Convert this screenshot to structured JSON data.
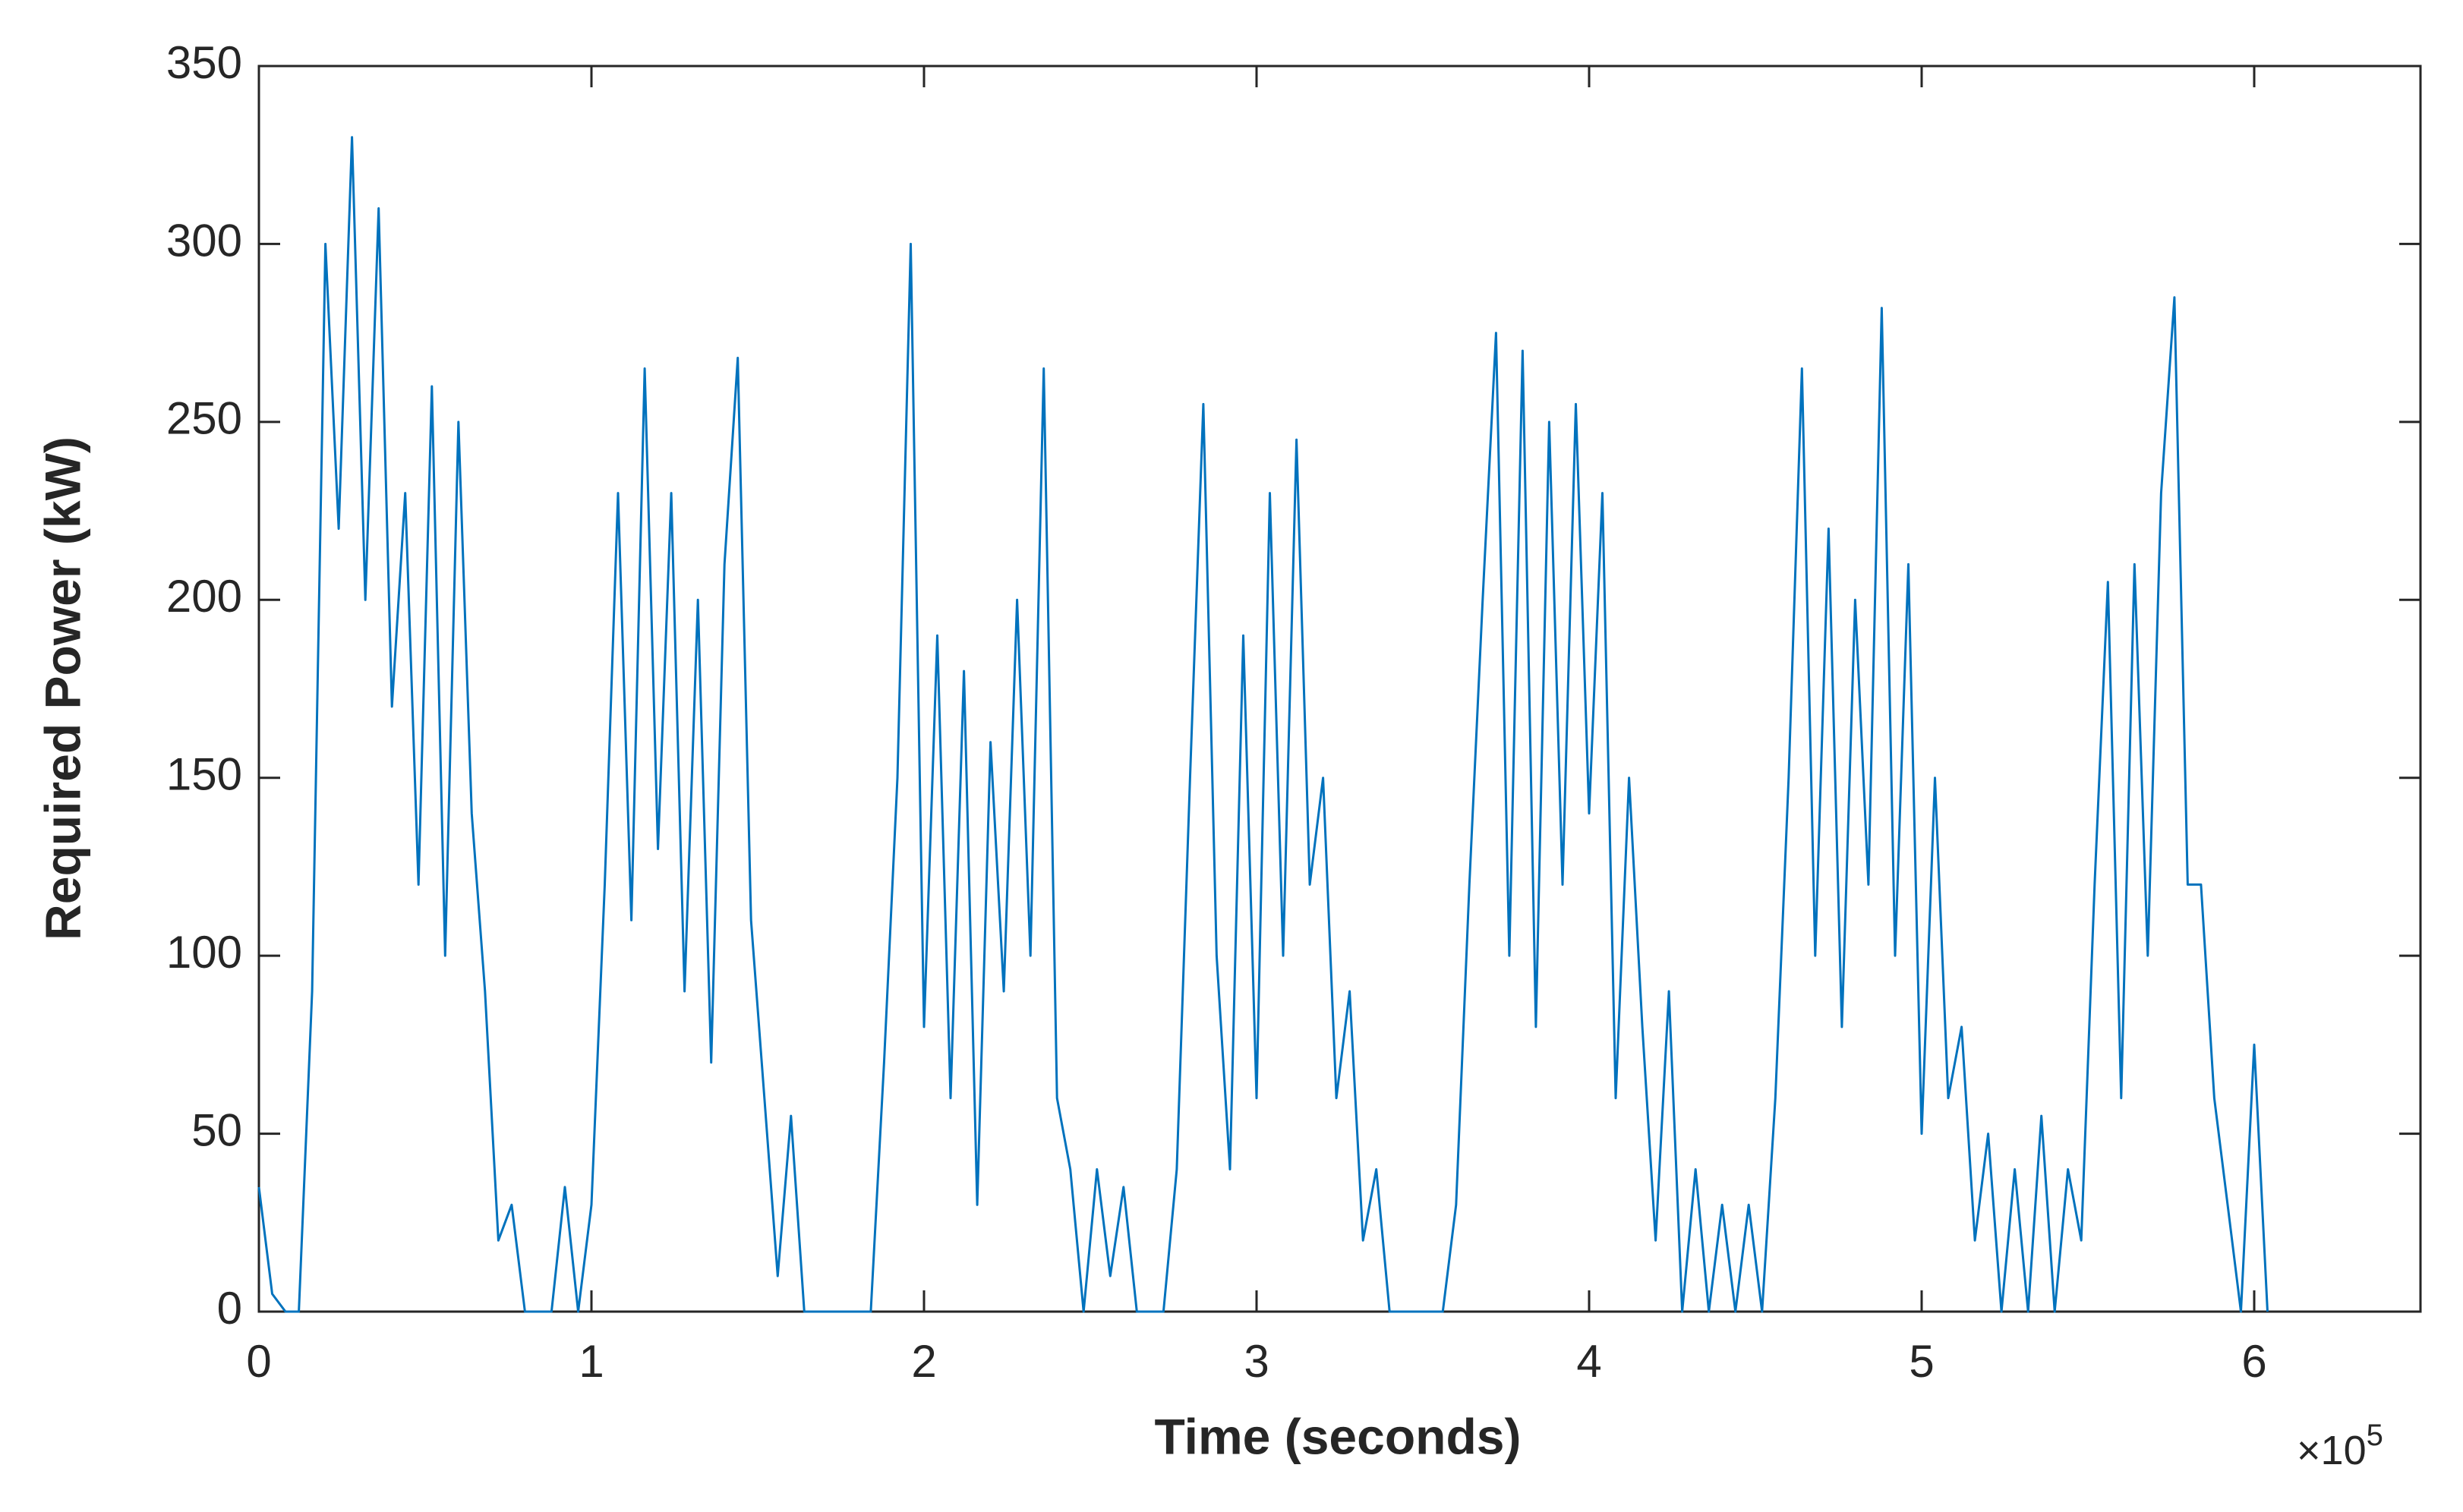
{
  "chart_data": {
    "type": "line",
    "x_label": "Time (seconds)",
    "y_label": "Required Power (kW)",
    "x_multiplier": {
      "base": "×10",
      "exponent": "5"
    },
    "color": "#0072bd",
    "xlim": [
      0,
      6.5
    ],
    "xticks": [
      0,
      1,
      2,
      3,
      4,
      5,
      6
    ],
    "ylim": [
      0,
      350
    ],
    "yticks": [
      0,
      50,
      100,
      150,
      200,
      250,
      300,
      350
    ],
    "grid": false,
    "x": [
      0,
      0.04,
      0.08,
      0.12,
      0.16,
      0.2,
      0.24,
      0.28,
      0.32,
      0.36,
      0.4,
      0.44,
      0.48,
      0.52,
      0.56,
      0.6,
      0.64,
      0.68,
      0.72,
      0.76,
      0.8,
      0.84,
      0.88,
      0.92,
      0.96,
      1,
      1.04,
      1.08,
      1.12,
      1.16,
      1.2,
      1.24,
      1.28,
      1.32,
      1.36,
      1.4,
      1.44,
      1.48,
      1.52,
      1.56,
      1.6,
      1.64,
      1.68,
      1.72,
      1.76,
      1.8,
      1.84,
      1.88,
      1.92,
      1.96,
      2,
      2.04,
      2.08,
      2.12,
      2.16,
      2.2,
      2.24,
      2.28,
      2.32,
      2.36,
      2.4,
      2.44,
      2.48,
      2.52,
      2.56,
      2.6,
      2.64,
      2.68,
      2.72,
      2.76,
      2.8,
      2.84,
      2.88,
      2.92,
      2.96,
      3,
      3.04,
      3.08,
      3.12,
      3.16,
      3.2,
      3.24,
      3.28,
      3.32,
      3.36,
      3.4,
      3.44,
      3.48,
      3.52,
      3.56,
      3.6,
      3.64,
      3.68,
      3.72,
      3.76,
      3.8,
      3.84,
      3.88,
      3.92,
      3.96,
      4,
      4.04,
      4.08,
      4.12,
      4.16,
      4.2,
      4.24,
      4.28,
      4.32,
      4.36,
      4.4,
      4.44,
      4.48,
      4.52,
      4.56,
      4.6,
      4.64,
      4.68,
      4.72,
      4.76,
      4.8,
      4.84,
      4.88,
      4.92,
      4.96,
      5,
      5.04,
      5.08,
      5.12,
      5.16,
      5.2,
      5.24,
      5.28,
      5.32,
      5.36,
      5.4,
      5.44,
      5.48,
      5.52,
      5.56,
      5.6,
      5.64,
      5.68,
      5.72,
      5.76,
      5.8,
      5.84,
      5.88,
      5.92,
      5.96,
      6,
      6.04
    ],
    "values": [
      35,
      5,
      0,
      0,
      90,
      300,
      220,
      330,
      200,
      310,
      170,
      230,
      120,
      260,
      100,
      250,
      140,
      90,
      20,
      30,
      0,
      0,
      0,
      35,
      0,
      30,
      120,
      230,
      110,
      265,
      130,
      230,
      90,
      200,
      70,
      210,
      268,
      110,
      60,
      10,
      55,
      0,
      0,
      0,
      0,
      0,
      0,
      70,
      150,
      300,
      80,
      190,
      60,
      180,
      30,
      160,
      90,
      200,
      100,
      265,
      60,
      40,
      0,
      40,
      10,
      35,
      0,
      0,
      0,
      40,
      150,
      255,
      100,
      40,
      190,
      60,
      230,
      100,
      245,
      120,
      150,
      60,
      90,
      20,
      40,
      0,
      0,
      0,
      0,
      0,
      30,
      120,
      200,
      275,
      100,
      270,
      80,
      250,
      120,
      255,
      140,
      230,
      60,
      150,
      80,
      20,
      90,
      0,
      40,
      0,
      30,
      0,
      30,
      0,
      60,
      150,
      265,
      100,
      220,
      80,
      200,
      120,
      282,
      100,
      210,
      50,
      150,
      60,
      80,
      20,
      50,
      0,
      40,
      0,
      55,
      0,
      40,
      20,
      120,
      205,
      60,
      210,
      100,
      230,
      285,
      120,
      120,
      60,
      30,
      0,
      75,
      0
    ]
  }
}
